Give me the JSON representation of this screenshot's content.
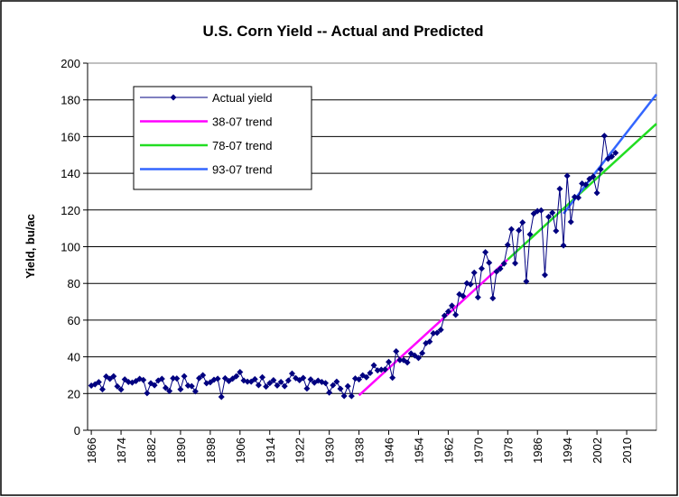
{
  "chart_data": {
    "type": "line",
    "title": "U.S. Corn Yield -- Actual and Predicted",
    "y_label": "Yield, bu/ac",
    "xlim": [
      1865,
      2018
    ],
    "xticks": [
      1866,
      1874,
      1882,
      1890,
      1898,
      1906,
      1914,
      1922,
      1930,
      1938,
      1946,
      1954,
      1962,
      1970,
      1978,
      1986,
      1994,
      2002,
      2010
    ],
    "ylim": [
      0,
      200
    ],
    "yticks": [
      0,
      20,
      40,
      60,
      80,
      100,
      120,
      140,
      160,
      180,
      200
    ],
    "grid": true,
    "legend": "upper left",
    "series": [
      {
        "name": "Actual yield",
        "color": "#000080",
        "marker": "diamond",
        "x": [
          1866,
          1867,
          1868,
          1869,
          1870,
          1871,
          1872,
          1873,
          1874,
          1875,
          1876,
          1877,
          1878,
          1879,
          1880,
          1881,
          1882,
          1883,
          1884,
          1885,
          1886,
          1887,
          1888,
          1889,
          1890,
          1891,
          1892,
          1893,
          1894,
          1895,
          1896,
          1897,
          1898,
          1899,
          1900,
          1901,
          1902,
          1903,
          1904,
          1905,
          1906,
          1907,
          1908,
          1909,
          1910,
          1911,
          1912,
          1913,
          1914,
          1915,
          1916,
          1917,
          1918,
          1919,
          1920,
          1921,
          1922,
          1923,
          1924,
          1925,
          1926,
          1927,
          1928,
          1929,
          1930,
          1931,
          1932,
          1933,
          1934,
          1935,
          1936,
          1937,
          1938,
          1939,
          1940,
          1941,
          1942,
          1943,
          1944,
          1945,
          1946,
          1947,
          1948,
          1949,
          1950,
          1951,
          1952,
          1953,
          1954,
          1955,
          1956,
          1957,
          1958,
          1959,
          1960,
          1961,
          1962,
          1963,
          1964,
          1965,
          1966,
          1967,
          1968,
          1969,
          1970,
          1971,
          1972,
          1973,
          1974,
          1975,
          1976,
          1977,
          1978,
          1979,
          1980,
          1981,
          1982,
          1983,
          1984,
          1985,
          1986,
          1987,
          1988,
          1989,
          1990,
          1991,
          1992,
          1993,
          1994,
          1995,
          1996,
          1997,
          1998,
          1999,
          2000,
          2001,
          2002,
          2003,
          2004,
          2005,
          2006,
          2007
        ],
        "values": [
          24.3,
          25.0,
          26.2,
          22.3,
          29.3,
          28.0,
          29.4,
          23.9,
          22.2,
          27.7,
          26.3,
          26.0,
          26.8,
          28.0,
          27.4,
          20.2,
          25.6,
          24.5,
          27.1,
          28.0,
          23.1,
          21.4,
          28.3,
          28.2,
          22.3,
          29.4,
          24.3,
          24.0,
          21.2,
          28.4,
          30.0,
          25.6,
          26.1,
          27.5,
          28.1,
          18.2,
          28.3,
          26.8,
          28.1,
          29.4,
          31.7,
          27.1,
          26.5,
          26.5,
          27.8,
          24.6,
          28.9,
          23.8,
          25.7,
          27.3,
          24.4,
          26.3,
          24.0,
          27.1,
          30.9,
          28.4,
          27.3,
          28.5,
          22.7,
          27.7,
          25.9,
          27.0,
          26.3,
          25.7,
          20.5,
          24.5,
          26.5,
          22.6,
          18.7,
          24.0,
          18.6,
          28.2,
          27.7,
          29.9,
          28.9,
          31.2,
          35.4,
          32.6,
          33.0,
          33.1,
          37.2,
          28.6,
          43.0,
          38.2,
          38.2,
          36.9,
          41.8,
          40.7,
          39.4,
          42.0,
          47.4,
          48.3,
          52.8,
          53.1,
          54.7,
          62.4,
          64.7,
          67.9,
          62.9,
          74.1,
          73.1,
          80.1,
          79.5,
          85.9,
          72.4,
          88.1,
          97.0,
          91.3,
          71.9,
          86.4,
          88.0,
          90.8,
          101.0,
          109.5,
          91.0,
          108.9,
          113.2,
          81.1,
          106.7,
          118.0,
          119.4,
          119.8,
          84.6,
          116.3,
          118.5,
          108.6,
          131.5,
          100.7,
          138.6,
          113.5,
          127.1,
          126.7,
          134.4,
          133.8,
          136.9,
          138.2,
          129.3,
          142.2,
          160.4,
          147.9,
          149.1,
          151.1
        ]
      },
      {
        "name": "38-07 trend",
        "color": "#ff00ff",
        "x": [
          1938,
          1978
        ],
        "values": [
          19,
          93
        ]
      },
      {
        "name": "78-07 trend",
        "color": "#22dd22",
        "x": [
          1978,
          2018
        ],
        "values": [
          93,
          167
        ]
      },
      {
        "name": "93-07 trend",
        "color": "#3366ff",
        "x": [
          1993,
          2018
        ],
        "values": [
          118,
          183
        ]
      }
    ]
  }
}
